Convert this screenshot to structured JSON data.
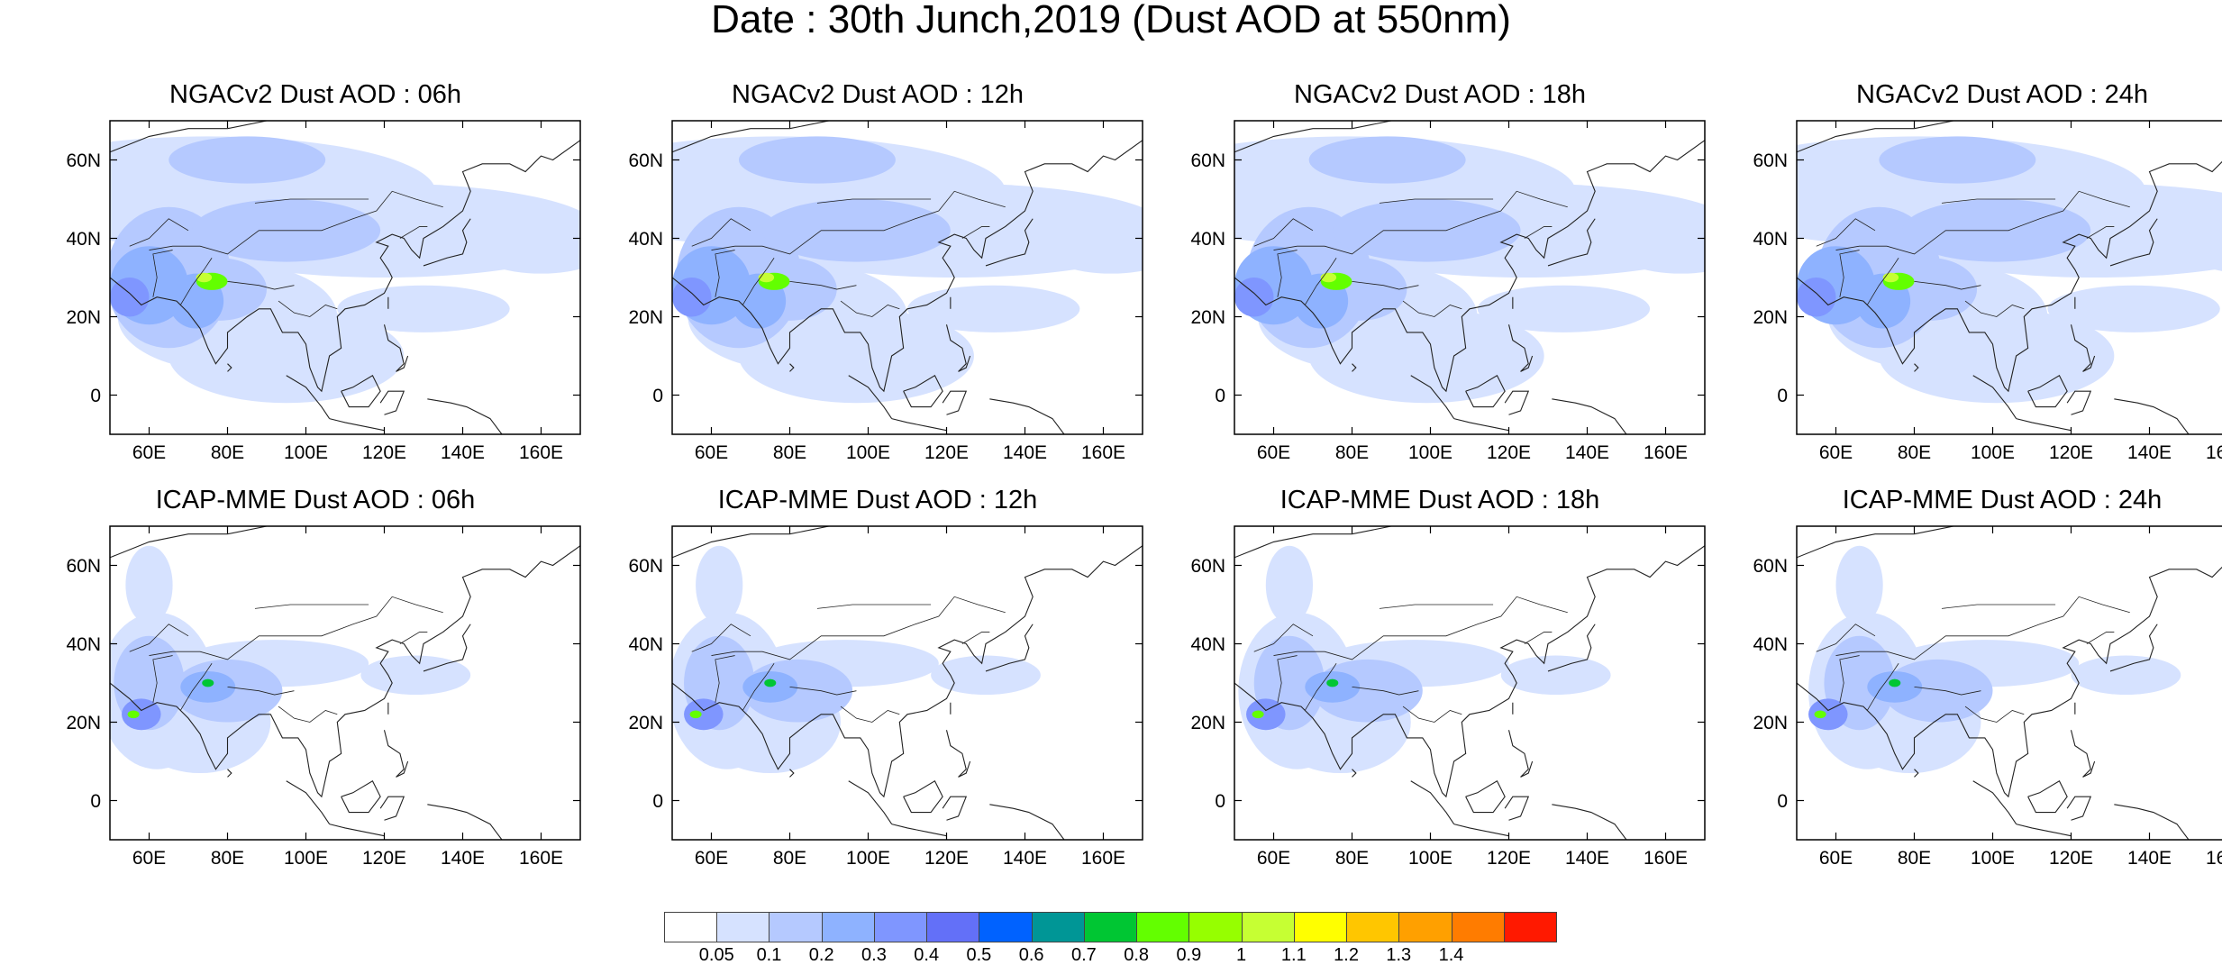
{
  "title": "Date : 30th Junch,2019 (Dust AOD at 550nm)",
  "panels": [
    {
      "title": "NGACv2 Dust AOD : 06h",
      "model": "NGACv2",
      "hour": "06h"
    },
    {
      "title": "NGACv2 Dust AOD : 12h",
      "model": "NGACv2",
      "hour": "12h"
    },
    {
      "title": "NGACv2 Dust AOD : 18h",
      "model": "NGACv2",
      "hour": "18h"
    },
    {
      "title": "NGACv2 Dust AOD : 24h",
      "model": "NGACv2",
      "hour": "24h"
    },
    {
      "title": "ICAP-MME Dust AOD : 06h",
      "model": "ICAP-MME",
      "hour": "06h"
    },
    {
      "title": "ICAP-MME Dust AOD : 12h",
      "model": "ICAP-MME",
      "hour": "12h"
    },
    {
      "title": "ICAP-MME Dust AOD : 18h",
      "model": "ICAP-MME",
      "hour": "18h"
    },
    {
      "title": "ICAP-MME Dust AOD : 24h",
      "model": "ICAP-MME",
      "hour": "24h"
    }
  ],
  "lat_ticks": [
    "60N",
    "40N",
    "20N",
    "0"
  ],
  "lat_values": [
    60,
    40,
    20,
    0
  ],
  "lon_ticks": [
    "60E",
    "80E",
    "100E",
    "120E",
    "140E",
    "160E"
  ],
  "lon_values": [
    60,
    80,
    100,
    120,
    140,
    160
  ],
  "map_extent": {
    "lon": [
      50,
      170
    ],
    "lat": [
      -10,
      70
    ]
  },
  "colorbar": {
    "labels": [
      "0.05",
      "0.1",
      "0.2",
      "0.3",
      "0.4",
      "0.5",
      "0.6",
      "0.7",
      "0.8",
      "0.9",
      "1",
      "1.1",
      "1.2",
      "1.3",
      "1.4"
    ],
    "colors": [
      "#ffffff",
      "#d6e2ff",
      "#b5c9ff",
      "#8eb2ff",
      "#7f96ff",
      "#6370f8",
      "#0062ff",
      "#009696",
      "#00c633",
      "#63ff00",
      "#96ff00",
      "#c6ff33",
      "#ffff00",
      "#ffc600",
      "#ffa000",
      "#ff7c00",
      "#ff1900"
    ]
  }
}
